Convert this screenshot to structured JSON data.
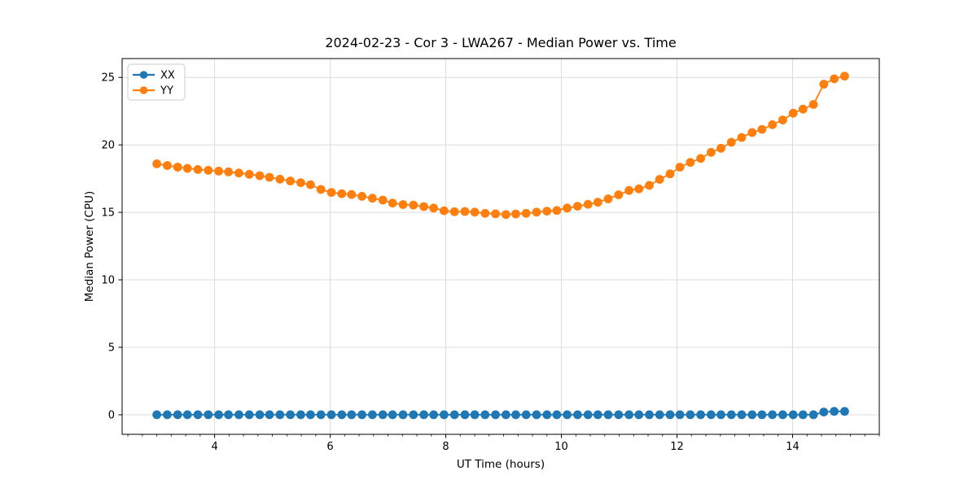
{
  "chart_data": {
    "type": "line",
    "title": "2024-02-23 - Cor 3 - LWA267 - Median Power vs. Time",
    "xlabel": "UT Time (hours)",
    "ylabel": "Median Power (CPU)",
    "xlim": [
      2.4,
      15.5
    ],
    "ylim": [
      -1.45,
      26.4
    ],
    "x_ticks": [
      4,
      6,
      8,
      10,
      12,
      14
    ],
    "y_ticks": [
      0,
      5,
      10,
      15,
      20,
      25
    ],
    "x_minor_tick_step": 0.25,
    "grid": true,
    "legend_position": "upper-left",
    "x": [
      3.0,
      3.18,
      3.36,
      3.53,
      3.71,
      3.89,
      4.07,
      4.24,
      4.42,
      4.6,
      4.78,
      4.95,
      5.13,
      5.31,
      5.49,
      5.66,
      5.84,
      6.02,
      6.2,
      6.37,
      6.55,
      6.73,
      6.91,
      7.08,
      7.26,
      7.44,
      7.62,
      7.79,
      7.97,
      8.15,
      8.33,
      8.5,
      8.68,
      8.86,
      9.04,
      9.21,
      9.39,
      9.57,
      9.75,
      9.92,
      10.1,
      10.28,
      10.46,
      10.63,
      10.81,
      10.99,
      11.17,
      11.34,
      11.52,
      11.7,
      11.88,
      12.05,
      12.23,
      12.41,
      12.59,
      12.76,
      12.94,
      13.12,
      13.3,
      13.47,
      13.65,
      13.83,
      14.01,
      14.18,
      14.36,
      14.54,
      14.72,
      14.9
    ],
    "series": [
      {
        "name": "XX",
        "color": "#1f77b4",
        "values": [
          0.0,
          0.0,
          0.0,
          0.0,
          0.0,
          0.0,
          0.0,
          0.0,
          0.0,
          0.0,
          0.0,
          0.0,
          0.0,
          0.0,
          0.0,
          0.0,
          0.0,
          0.0,
          0.0,
          0.0,
          0.0,
          0.0,
          0.0,
          0.0,
          0.0,
          0.0,
          0.0,
          0.0,
          0.0,
          0.0,
          0.0,
          0.0,
          0.0,
          0.0,
          0.0,
          0.0,
          0.0,
          0.0,
          0.0,
          0.0,
          0.0,
          0.0,
          0.0,
          0.0,
          0.0,
          0.0,
          0.0,
          0.0,
          0.0,
          0.0,
          0.0,
          0.0,
          0.0,
          0.0,
          0.0,
          0.0,
          0.0,
          0.0,
          0.0,
          0.0,
          0.0,
          0.0,
          0.0,
          0.0,
          0.0,
          0.2,
          0.25,
          0.25
        ]
      },
      {
        "name": "YY",
        "color": "#ff7f0e",
        "values": [
          18.6,
          18.47,
          18.35,
          18.26,
          18.18,
          18.12,
          18.06,
          18.0,
          17.92,
          17.82,
          17.72,
          17.6,
          17.46,
          17.33,
          17.2,
          17.05,
          16.7,
          16.48,
          16.38,
          16.32,
          16.19,
          16.05,
          15.91,
          15.69,
          15.58,
          15.54,
          15.43,
          15.32,
          15.12,
          15.05,
          15.07,
          15.02,
          14.93,
          14.89,
          14.84,
          14.88,
          14.93,
          15.02,
          15.09,
          15.14,
          15.32,
          15.45,
          15.6,
          15.75,
          16.0,
          16.3,
          16.62,
          16.74,
          17.0,
          17.45,
          17.85,
          18.35,
          18.7,
          19.0,
          19.45,
          19.75,
          20.2,
          20.55,
          20.92,
          21.15,
          21.5,
          21.85,
          22.35,
          22.65,
          23.0,
          24.5,
          24.9,
          25.1
        ]
      }
    ],
    "colors": {
      "xx": "#1f77b4",
      "yy": "#ff7f0e",
      "grid": "#dcdcdc",
      "spine": "#000000",
      "legend_border": "#cccccc"
    }
  }
}
